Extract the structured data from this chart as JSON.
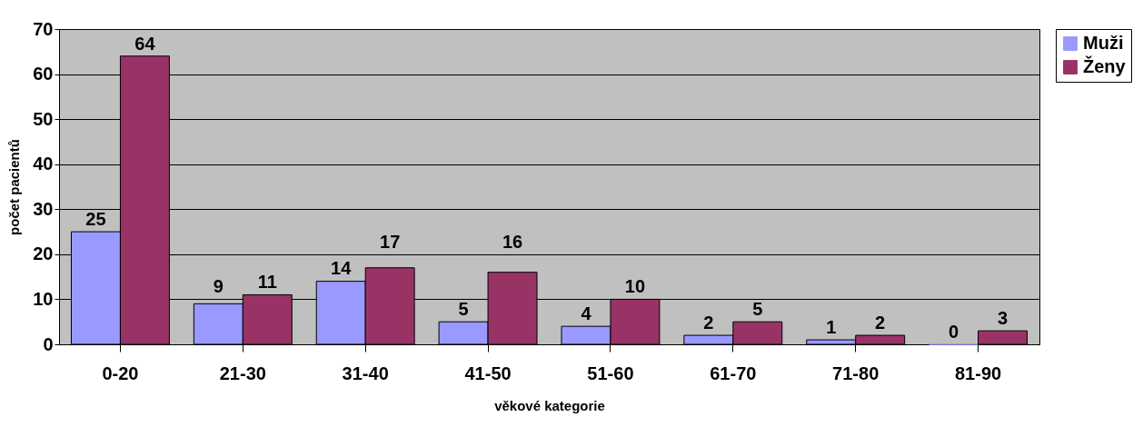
{
  "chart_data": {
    "type": "bar",
    "xlabel": "věkové kategorie",
    "ylabel": "počet pacientů",
    "categories": [
      "0-20",
      "21-30",
      "31-40",
      "41-50",
      "51-60",
      "61-70",
      "71-80",
      "81-90"
    ],
    "series": [
      {
        "name": "Muži",
        "color": "#9999ff",
        "values": [
          25,
          9,
          14,
          5,
          4,
          2,
          1,
          0
        ]
      },
      {
        "name": "Ženy",
        "color": "#993366",
        "values": [
          64,
          11,
          17,
          16,
          10,
          5,
          2,
          3
        ]
      }
    ],
    "ylim": [
      0,
      70
    ],
    "yticks": [
      0,
      10,
      20,
      30,
      40,
      50,
      60,
      70
    ],
    "grid": "y",
    "legend": "right",
    "data_labels": true
  }
}
